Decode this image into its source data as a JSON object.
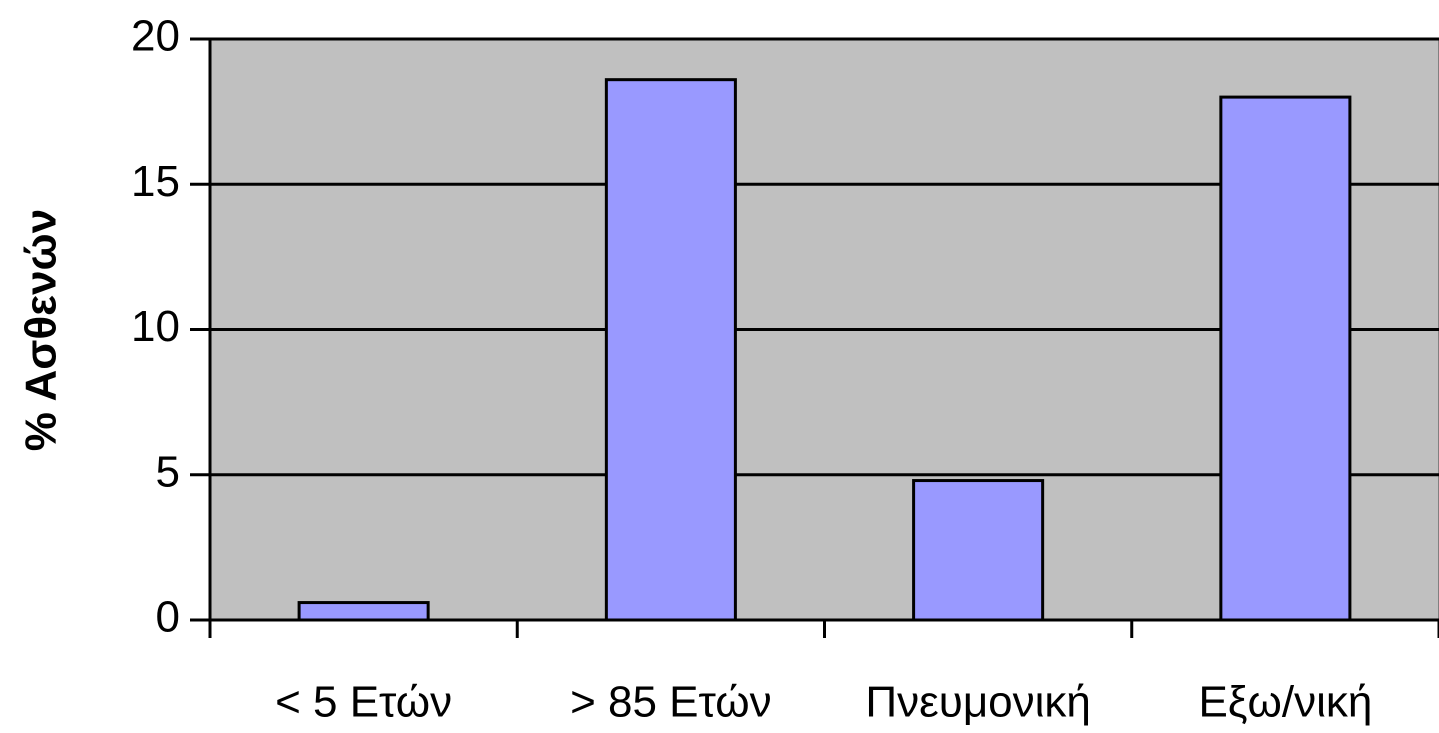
{
  "chart_data": {
    "type": "bar",
    "y_label": "% Ασθενών",
    "categories": [
      "< 5 Ετών",
      "> 85 Ετών",
      "Πνευμονική",
      "Εξω/νική"
    ],
    "values": [
      0.6,
      18.6,
      4.8,
      18.0
    ],
    "color": "#9999ff",
    "ylim": [
      0,
      20
    ],
    "yticks": [
      0,
      5,
      10,
      15,
      20
    ],
    "grid": true,
    "plot_background": "#c0c0c0"
  }
}
